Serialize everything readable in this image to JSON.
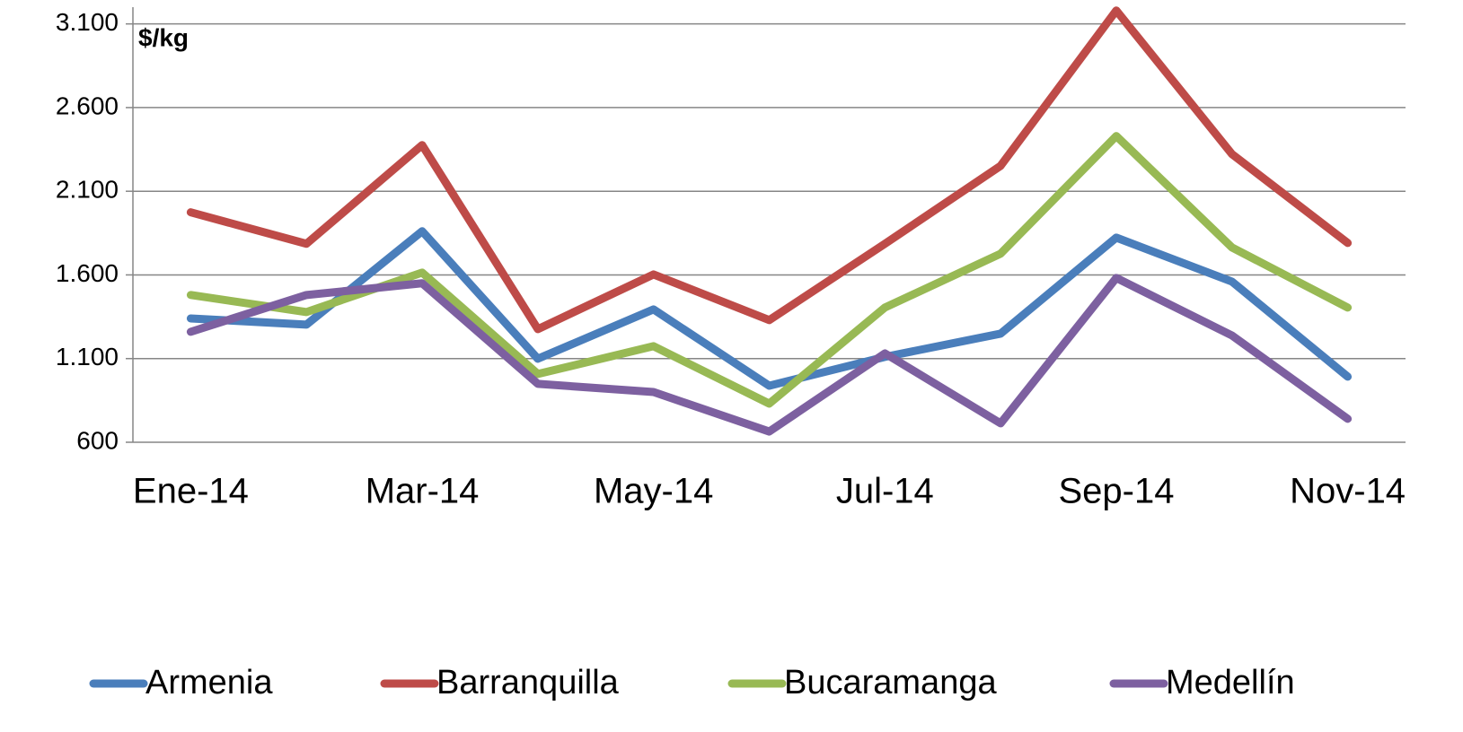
{
  "chart_data": {
    "type": "line",
    "y_label": "$/kg",
    "categories": [
      "Ene-14",
      null,
      "Mar-14",
      null,
      "May-14",
      null,
      "Jul-14",
      null,
      "Sep-14",
      null,
      "Nov-14"
    ],
    "series": [
      {
        "name": "Armenia",
        "color": "#4a7ebb",
        "values": [
          1340,
          1303,
          1861,
          1099,
          1394,
          938,
          1110,
          1249,
          1823,
          1560,
          992
        ]
      },
      {
        "name": "Barranquilla",
        "color": "#be4b48",
        "values": [
          1974,
          1786,
          2376,
          1276,
          1603,
          1330,
          1786,
          2252,
          3180,
          2322,
          1791
        ]
      },
      {
        "name": "Bucaramanga",
        "color": "#98b954",
        "values": [
          1480,
          1378,
          1614,
          1008,
          1174,
          831,
          1405,
          1727,
          2430,
          1764,
          1405
        ]
      },
      {
        "name": "Medellín",
        "color": "#7d60a0",
        "values": [
          1260,
          1480,
          1550,
          949,
          900,
          664,
          1131,
          713,
          1582,
          1238,
          740
        ]
      }
    ],
    "ylim": [
      600,
      3200
    ],
    "yticks": [
      {
        "value": 600,
        "label": "600"
      },
      {
        "value": 1100,
        "label": "1.100"
      },
      {
        "value": 1600,
        "label": "1.600"
      },
      {
        "value": 2100,
        "label": "2.100"
      },
      {
        "value": 2600,
        "label": "2.600"
      },
      {
        "value": 3100,
        "label": "3.100"
      }
    ],
    "grid": true,
    "legend": "bottom"
  }
}
